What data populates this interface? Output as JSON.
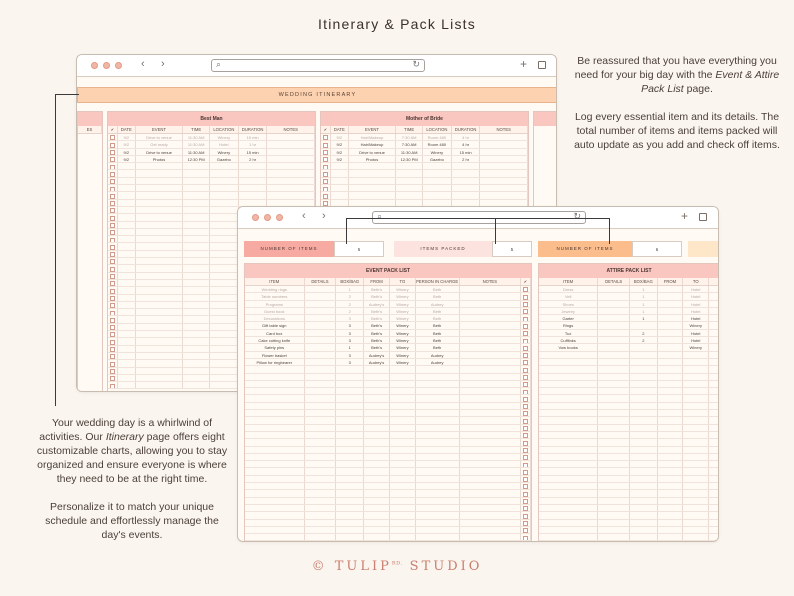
{
  "page": {
    "title": "Itinerary & Pack Lists"
  },
  "top_right_text": {
    "p1_a": "Be reassured that you have everything you need for your big day with the ",
    "p1_em": "Event & Attire Pack List",
    "p1_b": " page.",
    "p2": "Log every essential item and its details. The total number of items and items packed will auto update as you add and check off items."
  },
  "bottom_left_text": {
    "p1_a": "Your wedding day is a whirlwind of activities. Our ",
    "p1_em": "Itinerary",
    "p1_b": " page offers eight customizable charts, allowing you to stay organized and ensure everyone is where they need to be at the right time.",
    "p2": "Personalize it to match your unique schedule and effortlessly manage the day's events."
  },
  "logo": {
    "left": "© TULIP",
    "sup": "RD.",
    "right": " STUDIO"
  },
  "itinerary": {
    "banner": "WEDDING ITINERARY",
    "partial_col": "ES",
    "columns": [
      "✔",
      "DATE",
      "EVENT",
      "TIME",
      "LOCATION",
      "DURATION",
      "NOTES"
    ],
    "charts": [
      {
        "title": "Best Man",
        "rows": [
          {
            "date": "9/2",
            "event": "Drive to venue",
            "time": "11:30 AM",
            "location": "Winery",
            "duration": "15 min",
            "notes": "",
            "faded": true
          },
          {
            "date": "9/2",
            "event": "Get ready",
            "time": "11:30 AM",
            "location": "Hotel",
            "duration": "1 hr",
            "notes": "",
            "faded": true
          },
          {
            "date": "9/2",
            "event": "Drive to venue",
            "time": "11:30 AM",
            "location": "Winery",
            "duration": "15 min",
            "notes": "",
            "faded": false
          },
          {
            "date": "9/2",
            "event": "Photos",
            "time": "12:30 PM",
            "location": "Gazebo",
            "duration": "2 hr",
            "notes": "",
            "faded": false
          }
        ]
      },
      {
        "title": "Mother of Bride",
        "rows": [
          {
            "date": "9/2",
            "event": "Hair/Makeup",
            "time": "7:30 AM",
            "location": "Room 480",
            "duration": "4 hr",
            "notes": "",
            "faded": true
          },
          {
            "date": "9/2",
            "event": "Hair/Makeup",
            "time": "7:30 AM",
            "location": "Room 480",
            "duration": "4 hr",
            "notes": "",
            "faded": false
          },
          {
            "date": "9/2",
            "event": "Drive to venue",
            "time": "11:30 AM",
            "location": "Winery",
            "duration": "15 min",
            "notes": "",
            "faded": false
          },
          {
            "date": "9/2",
            "event": "Photos",
            "time": "12:30 PM",
            "location": "Gazebo",
            "duration": "2 hr",
            "notes": "",
            "faded": false
          }
        ]
      }
    ]
  },
  "pack": {
    "counters": {
      "number_label": "NUMBER OF ITEMS",
      "number_value": "5",
      "packed_label": "ITEMS PACKED",
      "packed_value": "5",
      "number_label_2": "NUMBER OF ITEMS",
      "number_value_2": "6"
    },
    "event_list": {
      "title": "EVENT PACK LIST",
      "columns": [
        "ITEM",
        "DETAILS",
        "BOX/BAG",
        "FROM",
        "TO",
        "PERSON IN CHARGE",
        "NOTES",
        "✔"
      ],
      "rows": [
        {
          "item": "Wedding rings",
          "details": "",
          "box": "1",
          "from": "Beth's",
          "to": "Winery",
          "person": "Beth",
          "faded": true
        },
        {
          "item": "Table numbers",
          "details": "",
          "box": "2",
          "from": "Beth's",
          "to": "Winery",
          "person": "Beth",
          "faded": true
        },
        {
          "item": "Programs",
          "details": "",
          "box": "2",
          "from": "Audrey's",
          "to": "Winery",
          "person": "Audrey",
          "faded": true
        },
        {
          "item": "Guest book",
          "details": "",
          "box": "2",
          "from": "Beth's",
          "to": "Winery",
          "person": "Beth",
          "faded": true
        },
        {
          "item": "Decorations",
          "details": "",
          "box": "3",
          "from": "Beth's",
          "to": "Winery",
          "person": "Beth",
          "faded": true
        },
        {
          "item": "Gift table sign",
          "details": "",
          "box": "3",
          "from": "Beth's",
          "to": "Winery",
          "person": "Beth",
          "faded": false
        },
        {
          "item": "Card box",
          "details": "",
          "box": "3",
          "from": "Beth's",
          "to": "Winery",
          "person": "Beth",
          "faded": false
        },
        {
          "item": "Cake cutting knife",
          "details": "",
          "box": "3",
          "from": "Beth's",
          "to": "Winery",
          "person": "Beth",
          "faded": false
        },
        {
          "item": "Safety pins",
          "details": "",
          "box": "1",
          "from": "Beth's",
          "to": "Winery",
          "person": "Beth",
          "faded": false
        },
        {
          "item": "Flower basket",
          "details": "",
          "box": "3",
          "from": "Audrey's",
          "to": "Winery",
          "person": "Audrey",
          "faded": false
        },
        {
          "item": "Pillow for ringbearer",
          "details": "",
          "box": "3",
          "from": "Audrey's",
          "to": "Winery",
          "person": "Audrey",
          "faded": false
        }
      ]
    },
    "attire_list": {
      "title": "ATTIRE PACK LIST",
      "columns": [
        "ITEM",
        "DETAILS",
        "BOX/BAG",
        "FROM",
        "TO",
        ""
      ],
      "rows": [
        {
          "item": "Dress",
          "details": "",
          "box": "1",
          "from": "",
          "to": "Hotel",
          "faded": true
        },
        {
          "item": "Veil",
          "details": "",
          "box": "1",
          "from": "",
          "to": "Hotel",
          "faded": true
        },
        {
          "item": "Shoes",
          "details": "",
          "box": "1",
          "from": "",
          "to": "Hotel",
          "faded": true
        },
        {
          "item": "Jewelry",
          "details": "",
          "box": "1",
          "from": "",
          "to": "Hotel",
          "faded": true
        },
        {
          "item": "Garter",
          "details": "",
          "box": "1",
          "from": "",
          "to": "Hotel",
          "faded": false
        },
        {
          "item": "Rings",
          "details": "",
          "box": "",
          "from": "",
          "to": "Winery",
          "faded": false
        },
        {
          "item": "Tux",
          "details": "",
          "box": "2",
          "from": "",
          "to": "Hotel",
          "faded": false
        },
        {
          "item": "Cufflinks",
          "details": "",
          "box": "2",
          "from": "",
          "to": "Hotel",
          "faded": false
        },
        {
          "item": "Vow books",
          "details": "",
          "box": "",
          "from": "",
          "to": "Winery",
          "faded": false
        }
      ]
    }
  }
}
